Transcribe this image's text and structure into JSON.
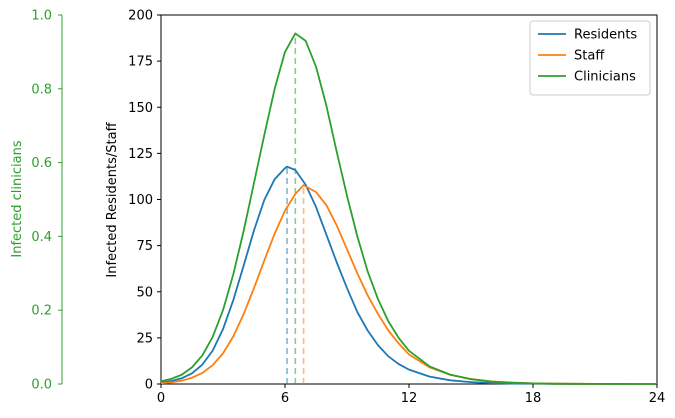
{
  "chart_data": {
    "type": "line",
    "title": "",
    "xlabel": "",
    "ylabel": "Infected Residents/Staff",
    "y2label": "Infected clinicians",
    "xlim": [
      0,
      24
    ],
    "ylim": [
      0,
      200
    ],
    "y2lim": [
      0,
      1.0
    ],
    "x_ticks": [
      0,
      6,
      12,
      18,
      24
    ],
    "y_ticks": [
      0,
      25,
      50,
      75,
      100,
      125,
      150,
      175,
      200
    ],
    "y2_ticks": [
      0.0,
      0.2,
      0.4,
      0.6,
      0.8,
      1.0
    ],
    "y2_tick_labels": [
      "0.0",
      "0.2",
      "0.4",
      "0.6",
      "0.8",
      "1.0"
    ],
    "y2_color": "#2ca02c",
    "grid": false,
    "legend_position": "top-right",
    "series": [
      {
        "name": "Residents",
        "color": "#1f77b4",
        "peak_x": 6.1,
        "x": [
          0,
          0.5,
          1,
          1.5,
          2,
          2.5,
          3,
          3.5,
          4,
          4.5,
          5,
          5.5,
          6,
          6.1,
          6.5,
          7,
          7.5,
          8,
          8.5,
          9,
          9.5,
          10,
          10.5,
          11,
          11.5,
          12,
          13,
          14,
          15,
          16,
          17,
          18,
          19,
          20,
          21,
          22,
          23,
          24
        ],
        "values": [
          0.8,
          1.6,
          3.1,
          5.8,
          10.5,
          18.1,
          29.7,
          45.5,
          64.2,
          83.3,
          99.8,
          111.0,
          117.0,
          117.8,
          116.0,
          108.0,
          96.0,
          81.0,
          66.0,
          52.0,
          39.0,
          29.0,
          21.0,
          15.0,
          10.8,
          7.8,
          4.0,
          2.0,
          1.0,
          0.5,
          0.25,
          0.12,
          0.06,
          0.03,
          0.02,
          0.01,
          0.0,
          0.0
        ]
      },
      {
        "name": "Staff",
        "color": "#ff7f0e",
        "peak_x": 6.9,
        "x": [
          0,
          0.5,
          1,
          1.5,
          2,
          2.5,
          3,
          3.5,
          4,
          4.5,
          5,
          5.5,
          6,
          6.5,
          6.9,
          7.5,
          8,
          8.5,
          9,
          9.5,
          10,
          10.5,
          11,
          11.5,
          12,
          13,
          14,
          15,
          16,
          17,
          18,
          19,
          20,
          21,
          22,
          23,
          24
        ],
        "values": [
          0.4,
          0.9,
          1.8,
          3.4,
          6.0,
          10.2,
          16.6,
          25.8,
          37.9,
          52.0,
          67.0,
          81.5,
          94.0,
          103.0,
          107.8,
          104.0,
          97.0,
          86.0,
          73.0,
          60.0,
          48.0,
          38.0,
          29.0,
          22.0,
          16.0,
          9.0,
          5.0,
          2.7,
          1.4,
          0.7,
          0.35,
          0.18,
          0.09,
          0.05,
          0.02,
          0.01,
          0.0
        ]
      },
      {
        "name": "Clinicians",
        "color": "#2ca02c",
        "peak_x": 6.5,
        "x": [
          0,
          0.5,
          1,
          1.5,
          2,
          2.5,
          3,
          3.5,
          4,
          4.5,
          5,
          5.5,
          6,
          6.5,
          7,
          7.5,
          8,
          8.5,
          9,
          9.5,
          10,
          10.5,
          11,
          11.5,
          12,
          13,
          14,
          15,
          16,
          17,
          18,
          19,
          20,
          21,
          22,
          23,
          24
        ],
        "values": [
          1.5,
          2.8,
          5.0,
          9.0,
          15.5,
          25.5,
          40.0,
          59.5,
          83.0,
          109.0,
          135.0,
          160.0,
          180.0,
          190.0,
          186.0,
          172.0,
          151.0,
          126.0,
          102.0,
          80.0,
          61.0,
          46.0,
          34.0,
          25.0,
          18.0,
          9.5,
          5.0,
          2.6,
          1.3,
          0.7,
          0.35,
          0.18,
          0.09,
          0.05,
          0.02,
          0.01,
          0.0
        ]
      }
    ]
  }
}
